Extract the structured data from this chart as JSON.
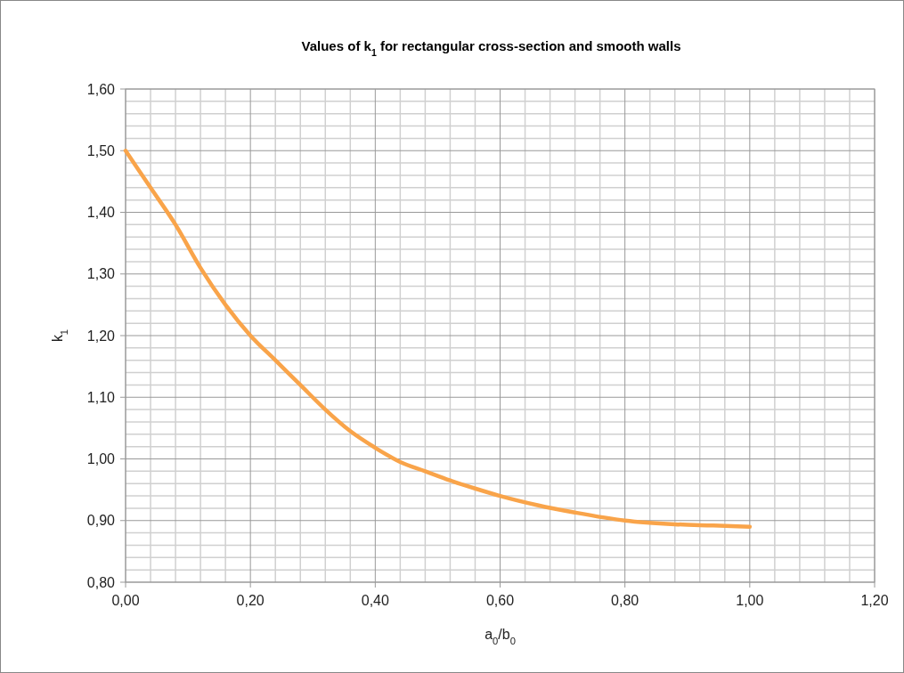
{
  "chart_data": {
    "type": "line",
    "title": "Values of k$_{1}$ for rectangular cross-section and smooth walls",
    "xlabel": "a$_{0}$/b$_{0}$",
    "ylabel": "k$_{1}$",
    "x": [
      0,
      0.04,
      0.08,
      0.12,
      0.16,
      0.2,
      0.24,
      0.28,
      0.32,
      0.36,
      0.4,
      0.44,
      0.48,
      0.52,
      0.56,
      0.6,
      0.66,
      0.72,
      0.8,
      0.88,
      0.94,
      1.0
    ],
    "series": [
      {
        "color": "#f9a44a",
        "values": [
          1.5,
          1.44,
          1.38,
          1.31,
          1.25,
          1.2,
          1.16,
          1.12,
          1.08,
          1.045,
          1.018,
          0.995,
          0.98,
          0.965,
          0.952,
          0.94,
          0.925,
          0.913,
          0.9,
          0.894,
          0.892,
          0.89
        ]
      }
    ],
    "xlim": [
      0,
      1.2
    ],
    "xticks": [
      {
        "value": 0,
        "label": "0,00"
      },
      {
        "value": 0.2,
        "label": "0,20"
      },
      {
        "value": 0.4,
        "label": "0,40"
      },
      {
        "value": 0.6,
        "label": "0,60"
      },
      {
        "value": 0.8,
        "label": "0,80"
      },
      {
        "value": 1.0,
        "label": "1,00"
      },
      {
        "value": 1.2,
        "label": "1,20"
      }
    ],
    "ylim": [
      0.8,
      1.6
    ],
    "yticks": [
      {
        "value": 0.8,
        "label": "0,80"
      },
      {
        "value": 0.9,
        "label": "0,90"
      },
      {
        "value": 1.0,
        "label": "1,00"
      },
      {
        "value": 1.1,
        "label": "1,10"
      },
      {
        "value": 1.2,
        "label": "1,20"
      },
      {
        "value": 1.3,
        "label": "1,30"
      },
      {
        "value": 1.4,
        "label": "1,40"
      },
      {
        "value": 1.5,
        "label": "1,50"
      },
      {
        "value": 1.6,
        "label": "1,60"
      }
    ],
    "grid": true,
    "marker": "none",
    "line_style": "solid"
  }
}
